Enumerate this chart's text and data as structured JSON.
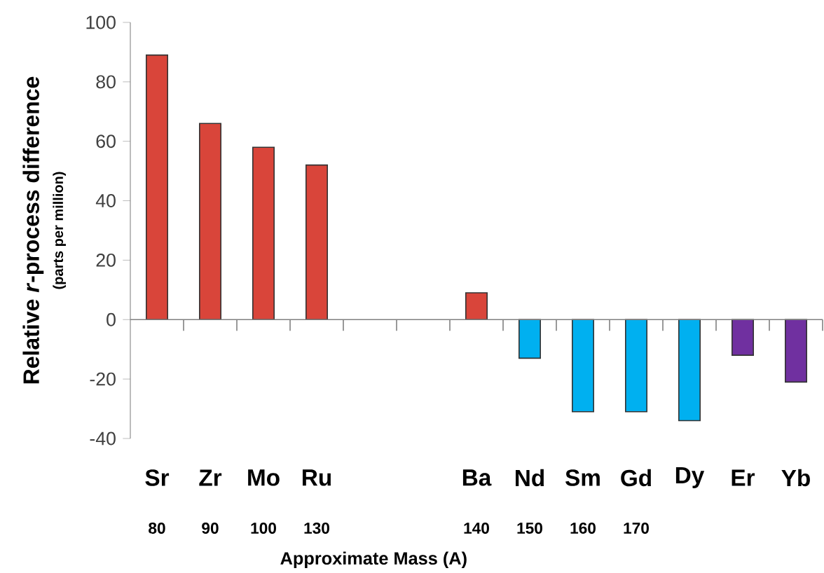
{
  "chart_data": {
    "type": "bar",
    "ylabel": "Relative *r*-process difference",
    "xlabel": "Approximate Mass (A)",
    "categories": [
      "Sr",
      "Zr",
      "Mo",
      "Ru",
      null,
      null,
      "Ba",
      "Nd",
      "Sm",
      "Gd",
      "Dy",
      "Er",
      "Yb"
    ],
    "values": [
      89,
      66,
      58,
      52,
      null,
      null,
      9,
      -13,
      -31,
      -31,
      -34,
      -12,
      -21
    ],
    "colors": [
      "#d9453a",
      "#d9453a",
      "#d9453a",
      "#d9453a",
      "#d9453a",
      "#d9453a",
      "#d9453a",
      "#00b0f0",
      "#00b0f0",
      "#00b0f0",
      "#00b0f0",
      "#7030a0",
      "#7030a0"
    ],
    "ylim": [
      -40,
      100
    ],
    "yticks": [
      -40,
      -20,
      0,
      20,
      40,
      60,
      80,
      100
    ],
    "annotations": [
      "(parts per million)",
      "80",
      "90",
      "100",
      "130",
      "140",
      "150",
      "160",
      "170"
    ]
  }
}
